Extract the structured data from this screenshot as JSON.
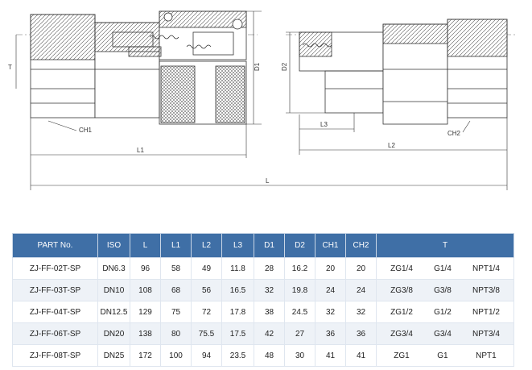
{
  "dimension_labels": {
    "T": "T",
    "CH1": "CH1",
    "CH2": "CH2",
    "L1": "L1",
    "L2": "L2",
    "L3": "L3",
    "L": "L",
    "D1": "D1",
    "D2": "D2"
  },
  "table": {
    "headers": [
      "PART No.",
      "ISO",
      "L",
      "L1",
      "L2",
      "L3",
      "D1",
      "D2",
      "CH1",
      "CH2",
      "T"
    ],
    "rows": [
      {
        "part": "ZJ-FF-02T-SP",
        "iso": "DN6.3",
        "L": "96",
        "L1": "58",
        "L2": "49",
        "L3": "11.8",
        "D1": "28",
        "D2": "16.2",
        "CH1": "20",
        "CH2": "20",
        "T": [
          "ZG1/4",
          "G1/4",
          "NPT1/4"
        ]
      },
      {
        "part": "ZJ-FF-03T-SP",
        "iso": "DN10",
        "L": "108",
        "L1": "68",
        "L2": "56",
        "L3": "16.5",
        "D1": "32",
        "D2": "19.8",
        "CH1": "24",
        "CH2": "24",
        "T": [
          "ZG3/8",
          "G3/8",
          "NPT3/8"
        ]
      },
      {
        "part": "ZJ-FF-04T-SP",
        "iso": "DN12.5",
        "L": "129",
        "L1": "75",
        "L2": "72",
        "L3": "17.8",
        "D1": "38",
        "D2": "24.5",
        "CH1": "32",
        "CH2": "32",
        "T": [
          "ZG1/2",
          "G1/2",
          "NPT1/2"
        ]
      },
      {
        "part": "ZJ-FF-06T-SP",
        "iso": "DN20",
        "L": "138",
        "L1": "80",
        "L2": "75.5",
        "L3": "17.5",
        "D1": "42",
        "D2": "27",
        "CH1": "36",
        "CH2": "36",
        "T": [
          "ZG3/4",
          "G3/4",
          "NPT3/4"
        ]
      },
      {
        "part": "ZJ-FF-08T-SP",
        "iso": "DN25",
        "L": "172",
        "L1": "100",
        "L2": "94",
        "L3": "23.5",
        "D1": "48",
        "D2": "30",
        "CH1": "41",
        "CH2": "41",
        "T": [
          "ZG1",
          "G1",
          "NPT1"
        ]
      }
    ]
  }
}
